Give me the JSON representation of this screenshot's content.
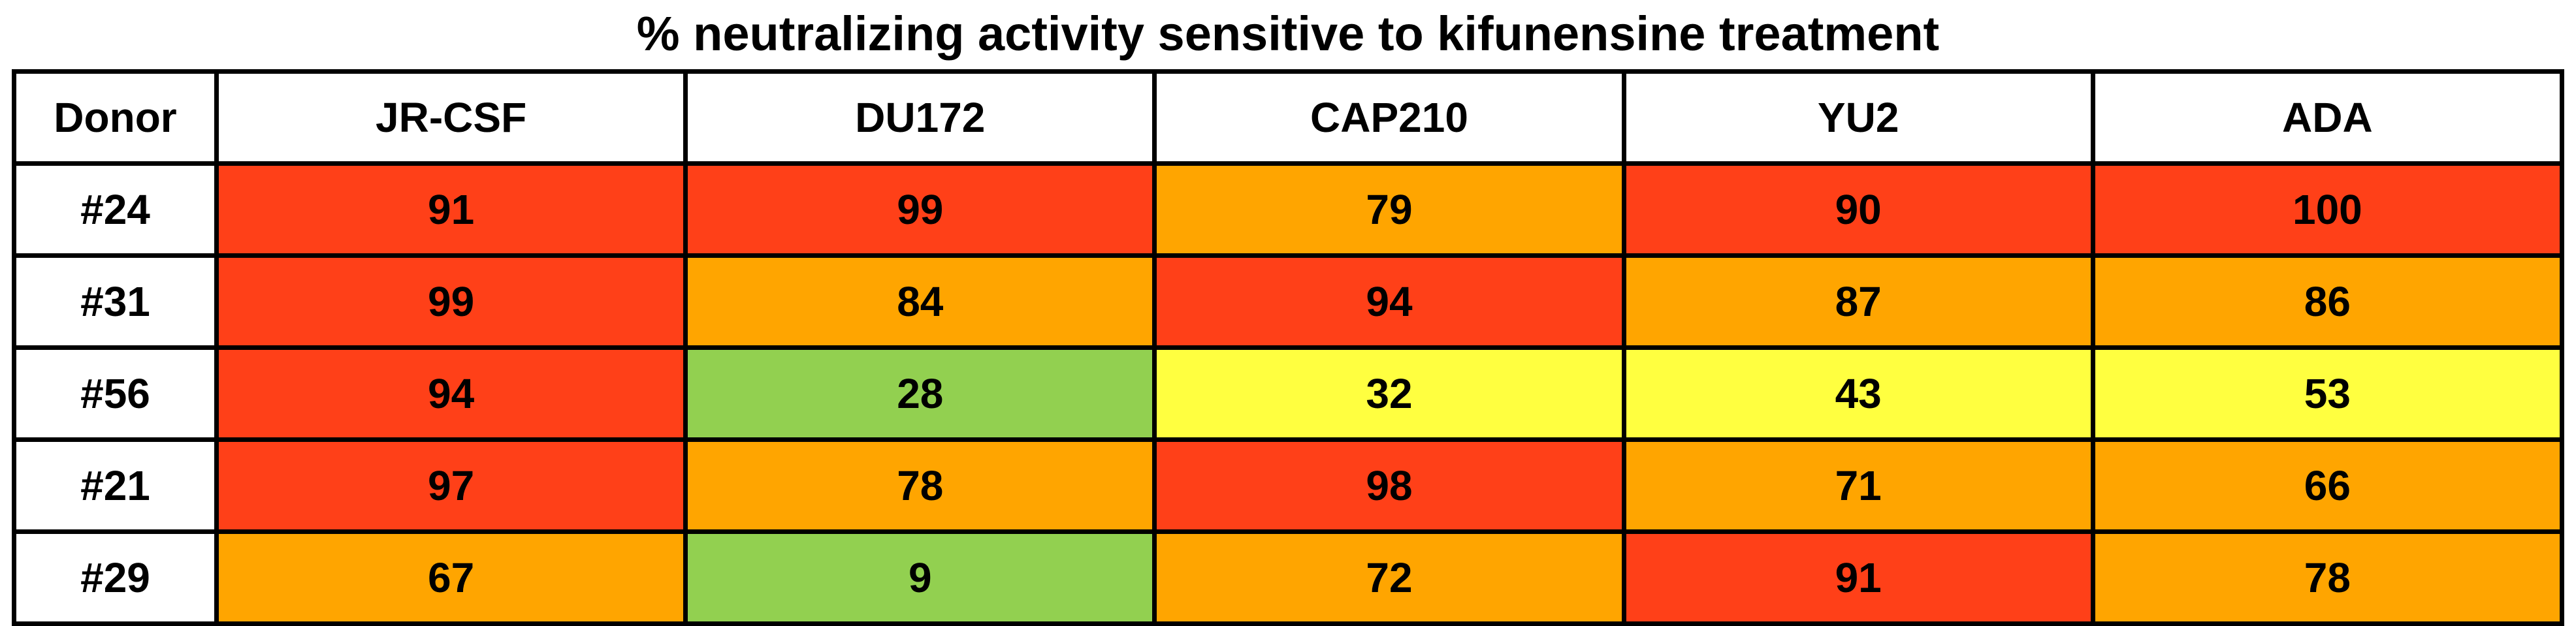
{
  "chart_data": {
    "type": "heatmap",
    "title": "% neutralizing activity sensitive to kifunensine treatment",
    "corner_label": "Donor",
    "columns": [
      "JR-CSF",
      "DU172",
      "CAP210",
      "YU2",
      "ADA"
    ],
    "rows": [
      "#24",
      "#31",
      "#56",
      "#21",
      "#29"
    ],
    "values": [
      [
        91,
        99,
        79,
        90,
        100
      ],
      [
        99,
        84,
        94,
        87,
        86
      ],
      [
        94,
        28,
        32,
        43,
        53
      ],
      [
        97,
        78,
        98,
        71,
        66
      ],
      [
        67,
        9,
        72,
        91,
        78
      ]
    ],
    "color_bins": [
      {
        "min": 0,
        "max": 29,
        "color": "#92d050"
      },
      {
        "min": 30,
        "max": 59,
        "color": "#ffff40"
      },
      {
        "min": 60,
        "max": 89,
        "color": "#ffa500"
      },
      {
        "min": 90,
        "max": 100,
        "color": "#ff4018"
      }
    ]
  }
}
